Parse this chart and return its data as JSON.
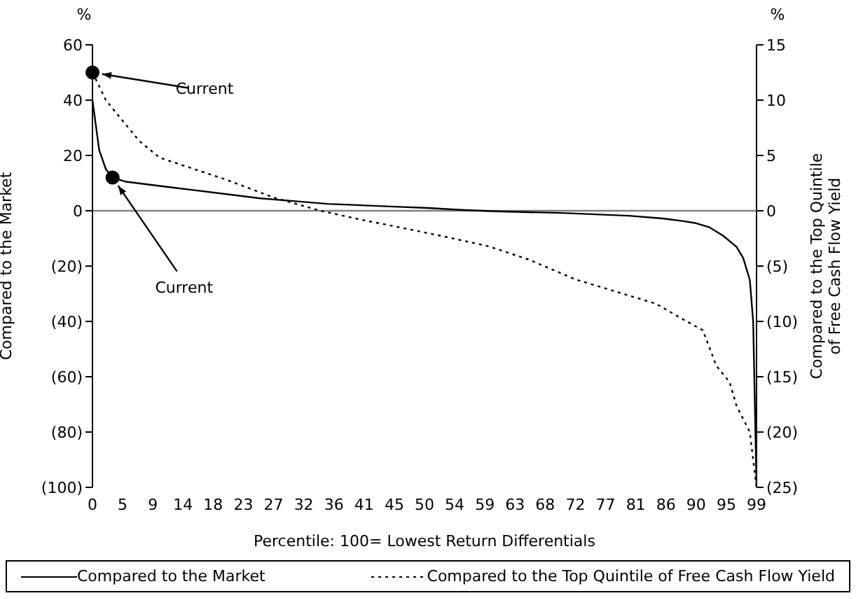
{
  "chart_data": {
    "type": "line",
    "xlabel": "Percentile: 100= Lowest Return Differentials",
    "ylabel": "Compared to the Market",
    "y2label": "Compared to the Top Quintile of Free Cash Flow Yield",
    "xlim": [
      0,
      99
    ],
    "xticks": [
      0,
      {
        "value": 4.5,
        "label": "5"
      },
      9,
      {
        "value": 13.5,
        "label": "14"
      },
      18,
      {
        "value": 22.5,
        "label": "23"
      },
      27,
      {
        "value": 31.5,
        "label": "32"
      },
      36,
      {
        "value": 40.5,
        "label": "41"
      },
      45,
      {
        "value": 49.5,
        "label": "50"
      },
      54,
      {
        "value": 58.5,
        "label": "59"
      },
      63,
      {
        "value": 67.5,
        "label": "68"
      },
      72,
      {
        "value": 76.5,
        "label": "77"
      },
      81,
      {
        "value": 85.5,
        "label": "86"
      },
      90,
      {
        "value": 94.5,
        "label": "95"
      },
      99
    ],
    "ylim": [
      -100,
      60
    ],
    "yticks": [
      {
        "value": -100,
        "label": "(100)"
      },
      {
        "value": -80,
        "label": "(80)"
      },
      {
        "value": -60,
        "label": "(60)"
      },
      {
        "value": -40,
        "label": "(40)"
      },
      {
        "value": -20,
        "label": "(20)"
      },
      0,
      20,
      40,
      60
    ],
    "y2lim": [
      -25,
      15
    ],
    "y2ticks": [
      {
        "value": -25,
        "label": "(25)"
      },
      {
        "value": -20,
        "label": "(20)"
      },
      {
        "value": -15,
        "label": "(15)"
      },
      {
        "value": -10,
        "label": "(10)"
      },
      {
        "value": -5,
        "label": "(5)"
      },
      0,
      5,
      10,
      15
    ],
    "series": [
      {
        "name": "Compared to the Market",
        "color": "#000000",
        "line_style": "solid",
        "x": [
          0,
          1,
          2,
          3,
          5,
          10,
          15,
          20,
          25,
          30,
          35,
          40,
          45,
          50,
          55,
          60,
          70,
          80,
          85,
          88,
          90,
          92,
          94,
          96,
          97,
          98,
          98.5,
          99
        ],
        "values": [
          40,
          22,
          15,
          12,
          10.5,
          9,
          7.5,
          6,
          4.5,
          3.5,
          2.5,
          2,
          1.5,
          1,
          0.3,
          -0.2,
          -0.8,
          -1.8,
          -2.8,
          -3.7,
          -4.5,
          -6,
          -9,
          -13,
          -17,
          -25,
          -40,
          -100
        ]
      },
      {
        "name": "Compared to the Top Quintile of Free Cash Flow Yield",
        "color": "#000000",
        "line_style": "dotted",
        "axis": "y2",
        "x": [
          0,
          2,
          4,
          7,
          10,
          15,
          20,
          27,
          34,
          40,
          45,
          53,
          59,
          65,
          72,
          78,
          84,
          88,
          91,
          93,
          95,
          96,
          98,
          99
        ],
        "values": [
          12.5,
          10,
          8.5,
          6.3,
          4.8,
          3.8,
          2.8,
          1.2,
          0,
          -0.8,
          -1.4,
          -2.4,
          -3.2,
          -4.4,
          -6.2,
          -7.3,
          -8.4,
          -9.8,
          -10.8,
          -14,
          -15.5,
          -17.6,
          -20,
          -25
        ]
      }
    ],
    "ref_lines": [
      {
        "axis": "y",
        "value": 0,
        "color": "#808080"
      }
    ],
    "annotations": [
      "%",
      "%",
      {
        "text": "Current",
        "x": 0,
        "y": 50
      },
      {
        "text": "Current",
        "x": 3,
        "y": 12
      }
    ],
    "legend": "bottom",
    "grid": false,
    "marker": "none"
  }
}
